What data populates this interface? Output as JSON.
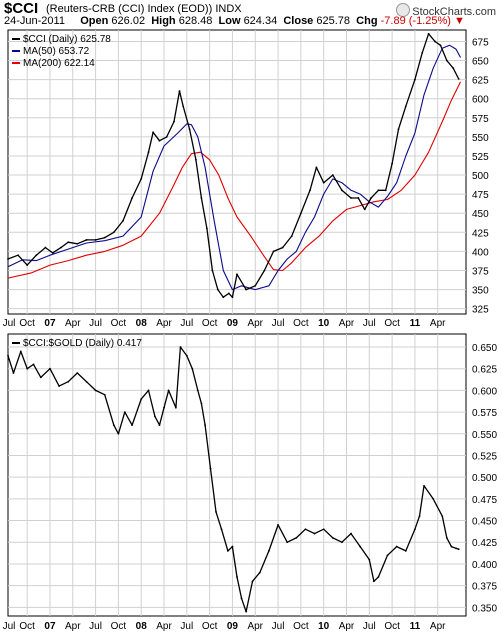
{
  "header": {
    "symbol": "$CCI",
    "description": "(Reuters-CRB (CCI) Index (EOD))",
    "exchange": "INDX",
    "brand": "StockCharts.com",
    "date": "24-Jun-2011",
    "open_label": "Open",
    "open": "626.02",
    "high_label": "High",
    "high": "628.48",
    "low_label": "Low",
    "low": "624.34",
    "close_label": "Close",
    "close": "625.78",
    "chg_label": "Chg",
    "chg": "-7.89 (-1.25%)",
    "chg_icon": "triangle-down-icon"
  },
  "colors": {
    "price": "#000000",
    "ma50": "#0a0a8c",
    "ma200": "#e00000",
    "grid": "#d0d0d0",
    "down": "#c00000"
  },
  "chart_data": [
    {
      "type": "line",
      "legend": [
        {
          "name": "$CCI (Daily) 625.78",
          "color": "#000000"
        },
        {
          "name": "MA(50) 653.72",
          "color": "#0a0a8c"
        },
        {
          "name": "MA(200) 622.14",
          "color": "#e00000"
        }
      ],
      "y_axis_side": "right",
      "ylim": [
        318,
        690
      ],
      "yticks": [
        325,
        350,
        375,
        400,
        425,
        450,
        475,
        500,
        525,
        550,
        575,
        600,
        625,
        650,
        675
      ],
      "grid": true,
      "xlim": [
        2006.54,
        2011.56
      ],
      "xticks": [
        {
          "label": "Jul",
          "x": 2006.5
        },
        {
          "label": "Oct",
          "x": 2006.75
        },
        {
          "label": "07",
          "x": 2007.0
        },
        {
          "label": "Apr",
          "x": 2007.25
        },
        {
          "label": "Jul",
          "x": 2007.5
        },
        {
          "label": "Oct",
          "x": 2007.75
        },
        {
          "label": "08",
          "x": 2008.0
        },
        {
          "label": "Apr",
          "x": 2008.25
        },
        {
          "label": "Jul",
          "x": 2008.5
        },
        {
          "label": "Oct",
          "x": 2008.75
        },
        {
          "label": "09",
          "x": 2009.0
        },
        {
          "label": "Apr",
          "x": 2009.25
        },
        {
          "label": "Jul",
          "x": 2009.5
        },
        {
          "label": "Oct",
          "x": 2009.75
        },
        {
          "label": "10",
          "x": 2010.0
        },
        {
          "label": "Apr",
          "x": 2010.25
        },
        {
          "label": "Jul",
          "x": 2010.5
        },
        {
          "label": "Oct",
          "x": 2010.75
        },
        {
          "label": "11",
          "x": 2011.0
        },
        {
          "label": "Apr",
          "x": 2011.25
        }
      ],
      "series": [
        {
          "name": "$CCI (Daily) 625.78",
          "x": [
            2006.54,
            2006.65,
            2006.75,
            2006.85,
            2006.95,
            2007.03,
            2007.12,
            2007.2,
            2007.3,
            2007.4,
            2007.5,
            2007.6,
            2007.7,
            2007.8,
            2007.9,
            2008.0,
            2008.08,
            2008.13,
            2008.2,
            2008.28,
            2008.36,
            2008.42,
            2008.46,
            2008.53,
            2008.6,
            2008.66,
            2008.72,
            2008.78,
            2008.84,
            2008.9,
            2008.96,
            2009.0,
            2009.05,
            2009.15,
            2009.25,
            2009.35,
            2009.45,
            2009.55,
            2009.65,
            2009.75,
            2009.85,
            2009.92,
            2010.0,
            2010.1,
            2010.2,
            2010.3,
            2010.38,
            2010.45,
            2010.52,
            2010.6,
            2010.68,
            2010.75,
            2010.82,
            2010.9,
            2011.0,
            2011.08,
            2011.15,
            2011.22,
            2011.28,
            2011.35,
            2011.42,
            2011.48
          ],
          "values": [
            390,
            395,
            382,
            395,
            405,
            398,
            405,
            412,
            410,
            415,
            415,
            418,
            425,
            440,
            470,
            495,
            530,
            556,
            545,
            550,
            570,
            610,
            590,
            560,
            520,
            470,
            430,
            375,
            350,
            340,
            345,
            340,
            370,
            350,
            355,
            375,
            400,
            405,
            420,
            450,
            480,
            510,
            490,
            500,
            480,
            470,
            470,
            455,
            470,
            480,
            480,
            515,
            560,
            590,
            625,
            660,
            685,
            675,
            670,
            650,
            640,
            626
          ]
        },
        {
          "name": "MA(50) 653.72",
          "x": [
            2006.54,
            2006.7,
            2006.85,
            2007.0,
            2007.2,
            2007.4,
            2007.6,
            2007.8,
            2008.0,
            2008.13,
            2008.25,
            2008.4,
            2008.5,
            2008.55,
            2008.62,
            2008.7,
            2008.8,
            2008.9,
            2009.0,
            2009.1,
            2009.25,
            2009.4,
            2009.5,
            2009.6,
            2009.7,
            2009.8,
            2009.9,
            2010.0,
            2010.1,
            2010.2,
            2010.3,
            2010.4,
            2010.5,
            2010.6,
            2010.7,
            2010.8,
            2010.9,
            2011.0,
            2011.1,
            2011.2,
            2011.3,
            2011.38,
            2011.45,
            2011.5
          ],
          "values": [
            380,
            389,
            388,
            395,
            403,
            411,
            414,
            420,
            445,
            505,
            538,
            555,
            567,
            566,
            550,
            510,
            440,
            375,
            350,
            355,
            350,
            355,
            375,
            390,
            400,
            425,
            445,
            475,
            495,
            490,
            480,
            475,
            465,
            458,
            472,
            490,
            525,
            555,
            605,
            640,
            666,
            670,
            665,
            654
          ]
        },
        {
          "name": "MA(200) 622.14",
          "x": [
            2006.54,
            2006.8,
            2007.0,
            2007.2,
            2007.4,
            2007.6,
            2007.8,
            2008.0,
            2008.2,
            2008.35,
            2008.45,
            2008.55,
            2008.65,
            2008.75,
            2008.85,
            2008.95,
            2009.05,
            2009.2,
            2009.35,
            2009.45,
            2009.55,
            2009.65,
            2009.8,
            2009.95,
            2010.1,
            2010.25,
            2010.4,
            2010.55,
            2010.7,
            2010.85,
            2011.0,
            2011.15,
            2011.3,
            2011.4,
            2011.5
          ],
          "values": [
            365,
            372,
            382,
            388,
            395,
            400,
            408,
            420,
            450,
            485,
            510,
            528,
            530,
            520,
            500,
            470,
            445,
            420,
            393,
            376,
            375,
            385,
            405,
            420,
            440,
            455,
            460,
            465,
            468,
            480,
            500,
            530,
            570,
            598,
            622
          ]
        }
      ]
    },
    {
      "type": "line",
      "legend": [
        {
          "name": "$CCI:$GOLD (Daily) 0.417",
          "color": "#000000"
        }
      ],
      "y_axis_side": "right",
      "ylim": [
        0.34,
        0.665
      ],
      "yticks": [
        0.35,
        0.375,
        0.4,
        0.425,
        0.45,
        0.475,
        0.5,
        0.525,
        0.55,
        0.575,
        0.6,
        0.625,
        0.65
      ],
      "ytick_labels": [
        "0.350",
        "0.375",
        "0.400",
        "0.425",
        "0.450",
        "0.475",
        "0.500",
        "0.525",
        "0.550",
        "0.575",
        "0.600",
        "0.625",
        "0.650"
      ],
      "grid": true,
      "xlim": [
        2006.54,
        2011.56
      ],
      "xticks": [
        {
          "label": "Jul",
          "x": 2006.5
        },
        {
          "label": "Oct",
          "x": 2006.75
        },
        {
          "label": "07",
          "x": 2007.0
        },
        {
          "label": "Apr",
          "x": 2007.25
        },
        {
          "label": "Jul",
          "x": 2007.5
        },
        {
          "label": "Oct",
          "x": 2007.75
        },
        {
          "label": "08",
          "x": 2008.0
        },
        {
          "label": "Apr",
          "x": 2008.25
        },
        {
          "label": "Jul",
          "x": 2008.5
        },
        {
          "label": "Oct",
          "x": 2008.75
        },
        {
          "label": "09",
          "x": 2009.0
        },
        {
          "label": "Apr",
          "x": 2009.25
        },
        {
          "label": "Jul",
          "x": 2009.5
        },
        {
          "label": "Oct",
          "x": 2009.75
        },
        {
          "label": "10",
          "x": 2010.0
        },
        {
          "label": "Apr",
          "x": 2010.25
        },
        {
          "label": "Jul",
          "x": 2010.5
        },
        {
          "label": "Oct",
          "x": 2010.75
        },
        {
          "label": "11",
          "x": 2011.0
        },
        {
          "label": "Apr",
          "x": 2011.25
        }
      ],
      "series": [
        {
          "name": "$CCI:$GOLD (Daily) 0.417",
          "x": [
            2006.54,
            2006.6,
            2006.68,
            2006.75,
            2006.82,
            2006.9,
            2007.0,
            2007.1,
            2007.2,
            2007.3,
            2007.4,
            2007.5,
            2007.6,
            2007.7,
            2007.75,
            2007.82,
            2007.9,
            2008.0,
            2008.08,
            2008.15,
            2008.2,
            2008.25,
            2008.3,
            2008.38,
            2008.43,
            2008.5,
            2008.56,
            2008.62,
            2008.66,
            2008.7,
            2008.76,
            2008.82,
            2008.88,
            2008.95,
            2009.0,
            2009.05,
            2009.1,
            2009.15,
            2009.22,
            2009.3,
            2009.4,
            2009.5,
            2009.6,
            2009.7,
            2009.8,
            2009.9,
            2010.0,
            2010.1,
            2010.2,
            2010.3,
            2010.4,
            2010.5,
            2010.55,
            2010.6,
            2010.7,
            2010.8,
            2010.9,
            2011.0,
            2011.05,
            2011.1,
            2011.2,
            2011.3,
            2011.35,
            2011.4,
            2011.45,
            2011.48
          ],
          "values": [
            0.64,
            0.62,
            0.645,
            0.625,
            0.63,
            0.615,
            0.625,
            0.605,
            0.61,
            0.62,
            0.61,
            0.6,
            0.595,
            0.56,
            0.55,
            0.575,
            0.56,
            0.59,
            0.6,
            0.57,
            0.56,
            0.58,
            0.6,
            0.58,
            0.65,
            0.64,
            0.625,
            0.6,
            0.585,
            0.56,
            0.51,
            0.46,
            0.44,
            0.415,
            0.42,
            0.385,
            0.36,
            0.345,
            0.38,
            0.39,
            0.415,
            0.445,
            0.425,
            0.43,
            0.44,
            0.435,
            0.44,
            0.43,
            0.425,
            0.435,
            0.42,
            0.405,
            0.38,
            0.385,
            0.41,
            0.42,
            0.415,
            0.44,
            0.455,
            0.49,
            0.475,
            0.455,
            0.43,
            0.42,
            0.418,
            0.417
          ]
        }
      ]
    }
  ]
}
